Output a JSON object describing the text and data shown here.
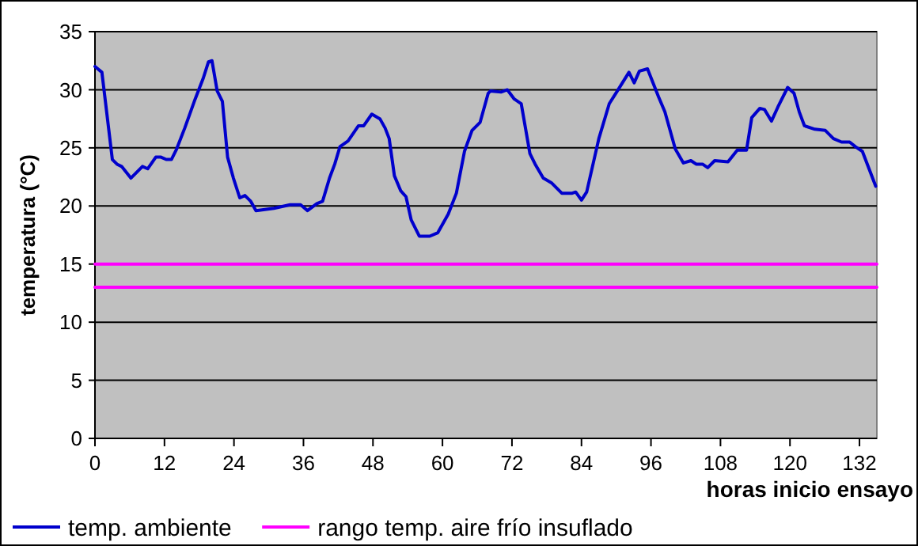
{
  "chart_data": {
    "type": "line",
    "xlabel": "horas inicio ensayo",
    "ylabel": "temperatura (°C)",
    "xlim": [
      0,
      135
    ],
    "xticks": [
      0,
      12,
      24,
      36,
      48,
      60,
      72,
      84,
      96,
      108,
      120,
      132
    ],
    "ylim": [
      0,
      35
    ],
    "yticks": [
      0,
      5,
      10,
      15,
      20,
      25,
      30,
      35
    ],
    "grid": "y",
    "legend": "bottom",
    "marker": "none",
    "series": [
      {
        "name": "temp. ambiente",
        "color": "#0000cc",
        "x": [
          0,
          1.2,
          3,
          3.8,
          4.6,
          6.2,
          8.2,
          9.1,
          10.5,
          11.4,
          12.3,
          13.2,
          14.1,
          15.5,
          17.3,
          18.7,
          19.6,
          20.2,
          21.1,
          22,
          22.9,
          23.9,
          25,
          25.9,
          26.9,
          27.8,
          30.9,
          33.7,
          35.5,
          36.7,
          38.3,
          39.3,
          40.5,
          41.4,
          42.3,
          43.7,
          45.5,
          46.4,
          47.8,
          49.2,
          50.1,
          50.8,
          51.7,
          52.8,
          53.7,
          54.6,
          56,
          57.8,
          59.2,
          61,
          62.4,
          63.8,
          65.1,
          66.5,
          67.9,
          68.3,
          70.1,
          71.2,
          72.4,
          73.6,
          75.1,
          76,
          77.4,
          78.8,
          80.6,
          82.4,
          83,
          84,
          84.9,
          87,
          88.8,
          90.2,
          92.2,
          93.1,
          94,
          95.4,
          97.3,
          98.4,
          100.2,
          101.6,
          102.9,
          103.8,
          104.9,
          105.8,
          107,
          109.3,
          110.9,
          112.5,
          113.4,
          114.8,
          115.6,
          116.8,
          117.9,
          119.6,
          120.7,
          121.6,
          122.5,
          124.3,
          126.1,
          127.5,
          128.9,
          130.3,
          131.3,
          132.5,
          134.8
        ],
        "values": [
          32,
          31.5,
          24,
          23.6,
          23.4,
          22.4,
          23.4,
          23.2,
          24.2,
          24.2,
          24,
          24,
          24.9,
          26.7,
          29.2,
          31,
          32.4,
          32.5,
          29.9,
          29,
          24.2,
          22.4,
          20.7,
          20.9,
          20.4,
          19.6,
          19.8,
          20.1,
          20.1,
          19.6,
          20.2,
          20.4,
          22.4,
          23.6,
          25.1,
          25.6,
          26.9,
          26.9,
          27.9,
          27.5,
          26.7,
          25.8,
          22.6,
          21.3,
          20.8,
          18.8,
          17.4,
          17.4,
          17.7,
          19.3,
          21.1,
          24.7,
          26.5,
          27.2,
          29.7,
          29.9,
          29.8,
          30,
          29.2,
          28.8,
          24.5,
          23.6,
          22.4,
          22,
          21.1,
          21.1,
          21.2,
          20.5,
          21.2,
          25.8,
          28.8,
          29.9,
          31.5,
          30.6,
          31.6,
          31.8,
          29.4,
          28.1,
          24.9,
          23.7,
          23.9,
          23.6,
          23.6,
          23.3,
          23.9,
          23.8,
          24.8,
          24.8,
          27.6,
          28.4,
          28.3,
          27.3,
          28.5,
          30.2,
          29.7,
          28.1,
          26.9,
          26.6,
          26.5,
          25.8,
          25.5,
          25.5,
          25.1,
          24.7,
          21.7
        ]
      },
      {
        "name": "rango temp. aire frío insuflado",
        "color": "#ff00ff",
        "x": [
          0,
          135
        ],
        "values": [
          15,
          15
        ]
      },
      {
        "color": "#ff00ff",
        "x": [
          0,
          135
        ],
        "values": [
          13,
          13
        ]
      }
    ]
  }
}
